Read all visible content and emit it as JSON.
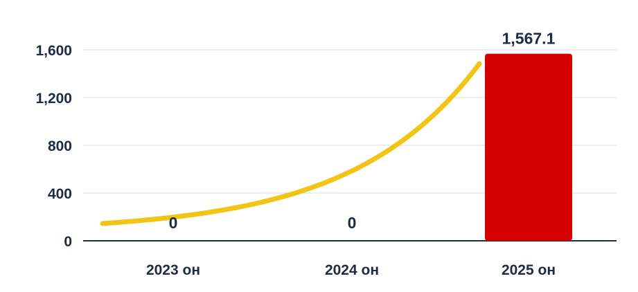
{
  "chart_data": {
    "type": "bar",
    "categories": [
      "2023 он",
      "2024 он",
      "2025 он"
    ],
    "values": [
      0,
      0,
      1567.1
    ],
    "data_labels": [
      "0",
      "0",
      "1,567.1"
    ],
    "y_ticks": [
      {
        "value": 0,
        "label": "0"
      },
      {
        "value": 400,
        "label": "400"
      },
      {
        "value": 800,
        "label": "800"
      },
      {
        "value": 1200,
        "label": "1,200"
      },
      {
        "value": 1600,
        "label": "1,600"
      }
    ],
    "ylim": [
      0,
      1600
    ],
    "title": "",
    "xlabel": "",
    "ylabel": "",
    "grid": true,
    "legend": "none",
    "trend_curve": "exponential upward curve overlay",
    "colors": {
      "bar": "#d50000",
      "trend": "#f2c416",
      "grid": "#e6e8ee",
      "axis": "#1f2a44",
      "text": "#1f2a44"
    }
  }
}
